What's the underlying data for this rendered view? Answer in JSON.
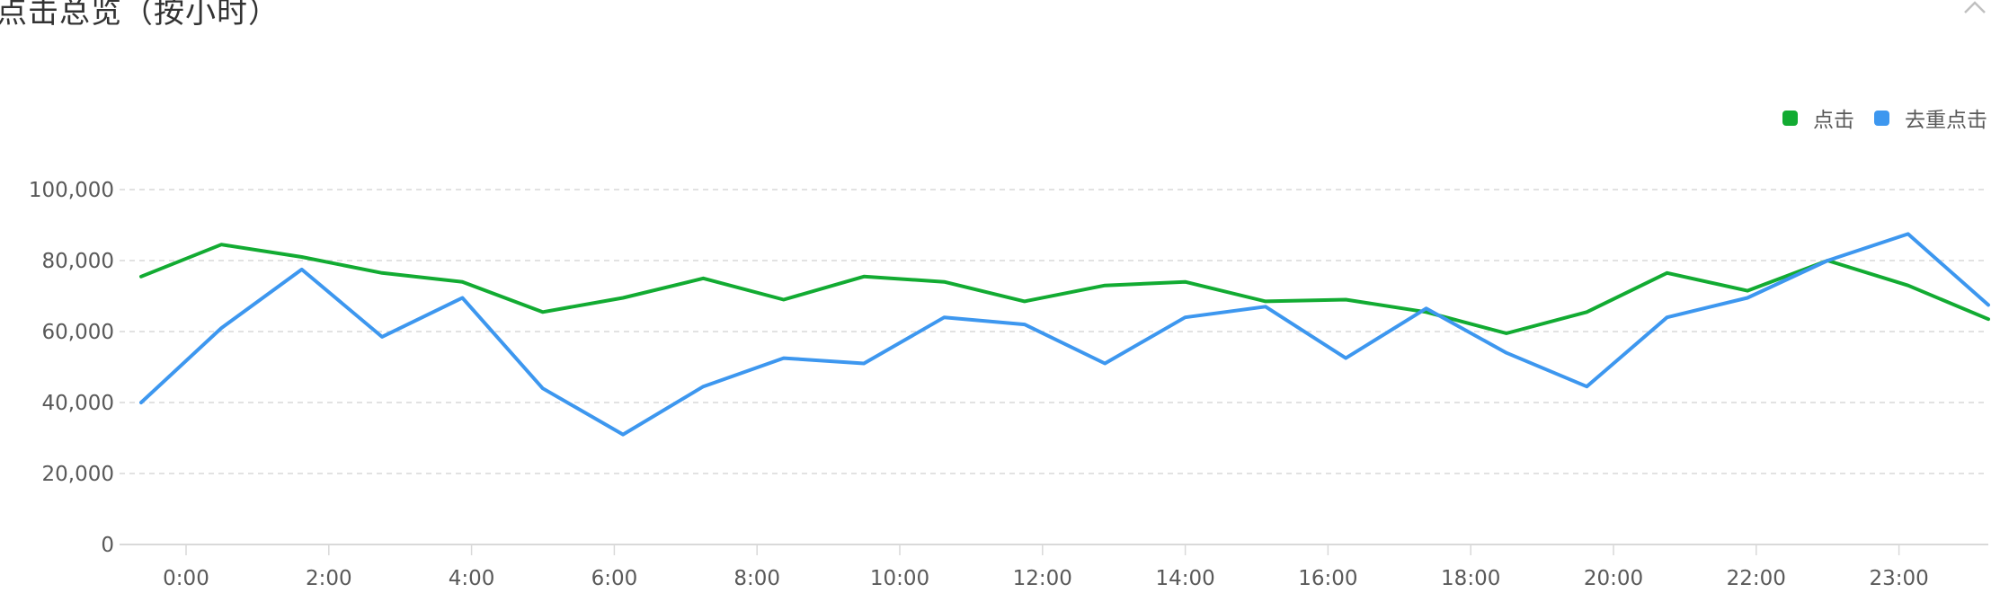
{
  "panel": {
    "title": "点击总览（按小时）",
    "collapse_icon": "chevron-up-icon"
  },
  "legend": {
    "items": [
      {
        "label": "点击",
        "color": "#12ab32"
      },
      {
        "label": "去重点击",
        "color": "#3d97ef"
      }
    ]
  },
  "chart_data": {
    "type": "line",
    "ylim": [
      0,
      100000
    ],
    "y_ticks": [
      0,
      20000,
      40000,
      60000,
      80000,
      100000
    ],
    "y_tick_labels": [
      "0",
      "20,000",
      "40,000",
      "60,000",
      "80,000",
      "100,000"
    ],
    "x_tick_labels": [
      "0:00",
      "2:00",
      "4:00",
      "6:00",
      "8:00",
      "10:00",
      "12:00",
      "14:00",
      "16:00",
      "18:00",
      "20:00",
      "22:00",
      "23:00"
    ],
    "grid": true,
    "legend_position": "top-right",
    "series": [
      {
        "name": "点击",
        "color": "#12ab32",
        "values": [
          75500,
          84500,
          81000,
          76500,
          74000,
          65500,
          69500,
          75000,
          69000,
          75500,
          74000,
          68500,
          73000,
          74000,
          68500,
          69000,
          65500,
          59500,
          65500,
          76500,
          71500,
          80000,
          73000,
          63500
        ]
      },
      {
        "name": "去重点击",
        "color": "#3d97ef",
        "values": [
          40000,
          61000,
          77500,
          58500,
          69500,
          44000,
          31000,
          44500,
          52500,
          51000,
          64000,
          62000,
          51000,
          64000,
          67000,
          52500,
          66500,
          54000,
          44500,
          64000,
          69500,
          80000,
          87500,
          67500
        ]
      }
    ]
  }
}
